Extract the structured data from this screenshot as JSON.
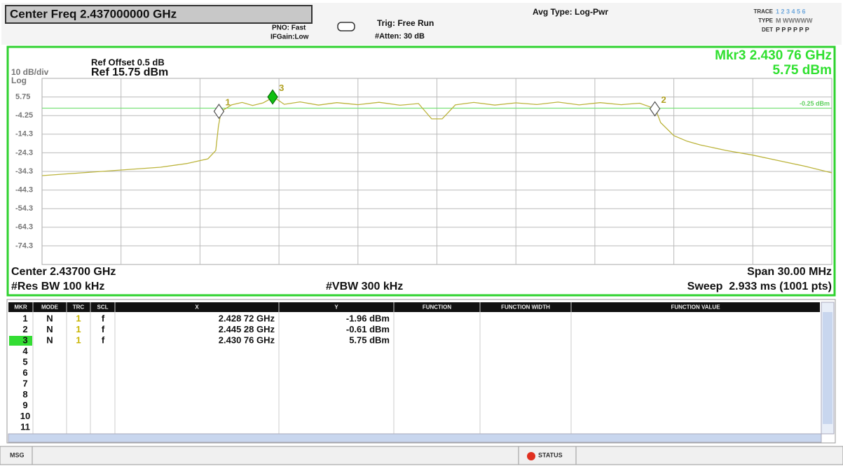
{
  "header": {
    "center_freq": "Center Freq 2.437000000 GHz",
    "pno": "PNO: Fast",
    "ifgain": "IFGain:Low",
    "trig": "Trig: Free Run",
    "atten": "#Atten: 30 dB",
    "avg_type": "Avg Type: Log-Pwr",
    "trace_label": "TRACE",
    "trace_values": "1 2 3 4 5 6",
    "type_label": "TYPE",
    "type_values": "M WWWWW",
    "det_label": "DET",
    "det_values": "P P P P P P"
  },
  "chart_data": {
    "type": "line",
    "ref_offset": "Ref Offset 0.5 dB",
    "ref_level": "Ref 15.75 dBm",
    "scale": "10 dB/div",
    "scale_type": "Log",
    "marker_readout": {
      "label": "Mkr3 2.430 76 GHz",
      "value": "5.75 dBm"
    },
    "center": "Center 2.43700 GHz",
    "span": "Span 30.00 MHz",
    "res_bw": "#Res BW 100 kHz",
    "vbw": "#VBW 300 kHz",
    "sweep": "Sweep  2.933 ms (1001 pts)",
    "xlim": [
      2.422,
      2.452
    ],
    "ylim": [
      -84.25,
      15.75
    ],
    "yticks": [
      5.75,
      -4.25,
      {
        "value": -14.25,
        "label": "-14.3"
      },
      {
        "value": -24.25,
        "label": "-24.3"
      },
      {
        "value": -34.25,
        "label": "-34.3"
      },
      {
        "value": -44.25,
        "label": "-44.3"
      },
      {
        "value": -54.25,
        "label": "-54.3"
      },
      {
        "value": -64.25,
        "label": "-64.3"
      },
      {
        "value": -74.25,
        "label": "-74.3"
      }
    ],
    "grid": true,
    "display_line": {
      "value": -0.25,
      "label": "-0.25 dBm"
    },
    "x": [
      2.422,
      2.4235,
      2.425,
      2.4265,
      2.4275,
      2.4283,
      2.4286,
      2.4287,
      2.4288,
      2.4292,
      2.4296,
      2.43,
      2.4304,
      2.4308,
      2.4312,
      2.4318,
      2.4325,
      2.4332,
      2.434,
      2.4348,
      2.4356,
      2.4363,
      2.4368,
      2.4372,
      2.4377,
      2.4384,
      2.4392,
      2.44,
      2.4408,
      2.4416,
      2.4424,
      2.4432,
      2.444,
      2.4447,
      2.4453,
      2.4455,
      2.446,
      2.4465,
      2.447,
      2.448,
      2.449,
      2.45,
      2.451,
      2.452
    ],
    "series": [
      {
        "name": "Trace 1",
        "color": "#bcb43c",
        "values": [
          -36.5,
          -35,
          -33.5,
          -32,
          -30,
          -27.5,
          -23,
          -10,
          -2,
          1.5,
          2.8,
          1.2,
          2.6,
          5.75,
          1.8,
          3.1,
          1.4,
          2.7,
          1.6,
          2.9,
          1.3,
          2.2,
          -6,
          -6,
          1.5,
          2.8,
          1.4,
          2.6,
          1.7,
          3,
          1.5,
          2.7,
          1.6,
          2.4,
          -0.61,
          -8,
          -15,
          -18,
          -20,
          -23,
          -25.5,
          -28.5,
          -31.5,
          -35
        ]
      }
    ],
    "markers": [
      {
        "label": "1",
        "x": 2.42872,
        "y": -1.96,
        "x_label": "2.428 72 GHz",
        "y_label": "-1.96 dBm",
        "mode": "N",
        "trace": 1,
        "scale": "f"
      },
      {
        "label": "2",
        "x": 2.44528,
        "y": -0.61,
        "x_label": "2.445 28 GHz",
        "y_label": "-0.61 dBm",
        "mode": "N",
        "trace": 1,
        "scale": "f"
      },
      {
        "label": "3",
        "x": 2.43076,
        "y": 5.75,
        "x_label": "2.430 76 GHz",
        "y_label": "5.75 dBm",
        "mode": "N",
        "trace": 1,
        "scale": "f",
        "active": true
      }
    ]
  },
  "marker_table": {
    "headers": [
      "MKR",
      "MODE",
      "TRC",
      "SCL",
      "X",
      "Y",
      "FUNCTION",
      "FUNCTION WIDTH",
      "FUNCTION VALUE"
    ],
    "rows": [
      1,
      2,
      3,
      4,
      5,
      6,
      7,
      8,
      9,
      10,
      11
    ]
  },
  "status_bar": {
    "msg": "MSG",
    "status": "STATUS"
  }
}
